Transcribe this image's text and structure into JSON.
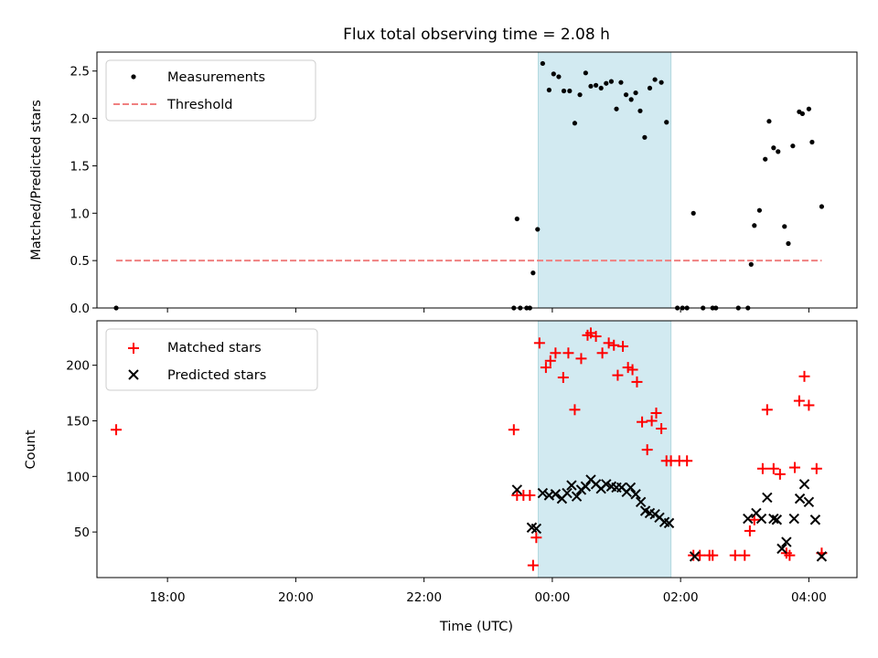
{
  "chart_data": {
    "title": "Flux total observing time = 2.08 h",
    "xlabel": "Time (UTC)",
    "x_units": "hours since 00:00 UTC",
    "xlim": [
      -7.1,
      4.75
    ],
    "xticks": [
      {
        "value": -6,
        "label": "18:00"
      },
      {
        "value": -4,
        "label": "20:00"
      },
      {
        "value": -2,
        "label": "22:00"
      },
      {
        "value": 0,
        "label": "00:00"
      },
      {
        "value": 2,
        "label": "02:00"
      },
      {
        "value": 4,
        "label": "04:00"
      }
    ],
    "shaded_interval": [
      -0.22,
      1.85
    ],
    "shaded_color": "#add8e6",
    "panels": [
      {
        "type": "scatter",
        "ylabel": "Matched/Predicted stars",
        "ylim": [
          0,
          2.7
        ],
        "yticks": [
          {
            "value": 0,
            "label": "0.0"
          },
          {
            "value": 0.5,
            "label": "0.5"
          },
          {
            "value": 1,
            "label": "1.0"
          },
          {
            "value": 1.5,
            "label": "1.5"
          },
          {
            "value": 2,
            "label": "2.0"
          },
          {
            "value": 2.5,
            "label": "2.5"
          }
        ],
        "legend": [
          {
            "label": "Measurements",
            "marker": "dot",
            "color": "#000000"
          },
          {
            "label": "Threshold",
            "marker": "dashed-line",
            "color": "#f08080"
          }
        ],
        "threshold": {
          "value": 0.5,
          "x_range": [
            -6.8,
            4.2
          ],
          "color": "#f08080"
        },
        "series": [
          {
            "name": "Measurements",
            "color": "#000000",
            "points": [
              [
                -6.8,
                0.0
              ],
              [
                -0.6,
                0.0
              ],
              [
                -0.55,
                0.94
              ],
              [
                -0.5,
                0.0
              ],
              [
                -0.4,
                0.0
              ],
              [
                -0.35,
                0.0
              ],
              [
                -0.3,
                0.37
              ],
              [
                -0.23,
                0.83
              ],
              [
                -0.15,
                2.58
              ],
              [
                -0.05,
                2.3
              ],
              [
                0.02,
                2.47
              ],
              [
                0.1,
                2.44
              ],
              [
                0.18,
                2.29
              ],
              [
                0.27,
                2.29
              ],
              [
                0.35,
                1.95
              ],
              [
                0.43,
                2.25
              ],
              [
                0.52,
                2.48
              ],
              [
                0.6,
                2.34
              ],
              [
                0.68,
                2.35
              ],
              [
                0.76,
                2.32
              ],
              [
                0.84,
                2.37
              ],
              [
                0.92,
                2.39
              ],
              [
                1.0,
                2.1
              ],
              [
                1.07,
                2.38
              ],
              [
                1.15,
                2.25
              ],
              [
                1.23,
                2.2
              ],
              [
                1.3,
                2.27
              ],
              [
                1.37,
                2.08
              ],
              [
                1.44,
                1.8
              ],
              [
                1.52,
                2.32
              ],
              [
                1.6,
                2.41
              ],
              [
                1.7,
                2.38
              ],
              [
                1.78,
                1.96
              ],
              [
                1.95,
                0.0
              ],
              [
                2.03,
                0.0
              ],
              [
                2.1,
                0.0
              ],
              [
                2.2,
                1.0
              ],
              [
                2.35,
                0.0
              ],
              [
                2.5,
                0.0
              ],
              [
                2.55,
                0.0
              ],
              [
                2.9,
                0.0
              ],
              [
                3.05,
                0.0
              ],
              [
                3.1,
                0.46
              ],
              [
                3.15,
                0.87
              ],
              [
                3.23,
                1.03
              ],
              [
                3.32,
                1.57
              ],
              [
                3.38,
                1.97
              ],
              [
                3.45,
                1.69
              ],
              [
                3.52,
                1.65
              ],
              [
                3.62,
                0.86
              ],
              [
                3.68,
                0.68
              ],
              [
                3.75,
                1.71
              ],
              [
                3.85,
                2.07
              ],
              [
                3.9,
                2.05
              ],
              [
                4.0,
                2.1
              ],
              [
                4.05,
                1.75
              ],
              [
                4.2,
                1.07
              ]
            ]
          }
        ]
      },
      {
        "type": "scatter",
        "ylabel": "Count",
        "ylim": [
          9,
          240
        ],
        "yticks": [
          {
            "value": 50,
            "label": "50"
          },
          {
            "value": 100,
            "label": "100"
          },
          {
            "value": 150,
            "label": "150"
          },
          {
            "value": 200,
            "label": "200"
          }
        ],
        "legend": [
          {
            "label": "Matched stars",
            "marker": "plus",
            "color": "#ff0000"
          },
          {
            "label": "Predicted stars",
            "marker": "x",
            "color": "#000000"
          }
        ],
        "series": [
          {
            "name": "Matched stars",
            "marker": "plus",
            "color": "#ff0000",
            "points": [
              [
                -6.8,
                142
              ],
              [
                -0.6,
                142
              ],
              [
                -0.55,
                83
              ],
              [
                -0.45,
                83
              ],
              [
                -0.35,
                83
              ],
              [
                -0.3,
                20
              ],
              [
                -0.25,
                45
              ],
              [
                -0.2,
                220
              ],
              [
                -0.1,
                198
              ],
              [
                -0.03,
                204
              ],
              [
                0.05,
                211
              ],
              [
                0.17,
                189
              ],
              [
                0.25,
                211
              ],
              [
                0.35,
                160
              ],
              [
                0.45,
                206
              ],
              [
                0.55,
                227
              ],
              [
                0.6,
                229
              ],
              [
                0.68,
                226
              ],
              [
                0.78,
                211
              ],
              [
                0.88,
                220
              ],
              [
                0.96,
                218
              ],
              [
                1.02,
                191
              ],
              [
                1.1,
                217
              ],
              [
                1.18,
                198
              ],
              [
                1.25,
                196
              ],
              [
                1.32,
                185
              ],
              [
                1.4,
                149
              ],
              [
                1.48,
                124
              ],
              [
                1.55,
                150
              ],
              [
                1.62,
                157
              ],
              [
                1.7,
                143
              ],
              [
                1.78,
                114
              ],
              [
                1.85,
                114
              ],
              [
                1.98,
                114
              ],
              [
                2.1,
                114
              ],
              [
                2.2,
                29
              ],
              [
                2.3,
                29
              ],
              [
                2.45,
                29
              ],
              [
                2.5,
                29
              ],
              [
                2.85,
                29
              ],
              [
                3.0,
                29
              ],
              [
                3.08,
                51
              ],
              [
                3.15,
                61
              ],
              [
                3.28,
                107
              ],
              [
                3.35,
                160
              ],
              [
                3.45,
                107
              ],
              [
                3.55,
                102
              ],
              [
                3.65,
                31
              ],
              [
                3.7,
                29
              ],
              [
                3.78,
                108
              ],
              [
                3.85,
                168
              ],
              [
                3.93,
                190
              ],
              [
                4.0,
                164
              ],
              [
                4.12,
                107
              ],
              [
                4.2,
                31
              ]
            ]
          },
          {
            "name": "Predicted stars",
            "marker": "x",
            "color": "#000000",
            "points": [
              [
                -0.55,
                88
              ],
              [
                -0.32,
                54
              ],
              [
                -0.25,
                53
              ],
              [
                -0.15,
                85
              ],
              [
                -0.05,
                83
              ],
              [
                0.05,
                84
              ],
              [
                0.15,
                80
              ],
              [
                0.23,
                85
              ],
              [
                0.3,
                92
              ],
              [
                0.38,
                82
              ],
              [
                0.45,
                88
              ],
              [
                0.52,
                91
              ],
              [
                0.6,
                97
              ],
              [
                0.68,
                93
              ],
              [
                0.76,
                89
              ],
              [
                0.84,
                93
              ],
              [
                0.92,
                91
              ],
              [
                1.0,
                90
              ],
              [
                1.08,
                90
              ],
              [
                1.16,
                86
              ],
              [
                1.22,
                90
              ],
              [
                1.3,
                84
              ],
              [
                1.38,
                77
              ],
              [
                1.45,
                69
              ],
              [
                1.52,
                67
              ],
              [
                1.6,
                66
              ],
              [
                1.67,
                63
              ],
              [
                1.75,
                59
              ],
              [
                1.82,
                58
              ],
              [
                2.22,
                28
              ],
              [
                3.05,
                62
              ],
              [
                3.18,
                67
              ],
              [
                3.26,
                62
              ],
              [
                3.35,
                81
              ],
              [
                3.45,
                62
              ],
              [
                3.5,
                61
              ],
              [
                3.58,
                35
              ],
              [
                3.65,
                41
              ],
              [
                3.77,
                62
              ],
              [
                3.86,
                80
              ],
              [
                3.93,
                93
              ],
              [
                4.0,
                77
              ],
              [
                4.1,
                61
              ],
              [
                4.2,
                28
              ]
            ]
          }
        ]
      }
    ]
  }
}
